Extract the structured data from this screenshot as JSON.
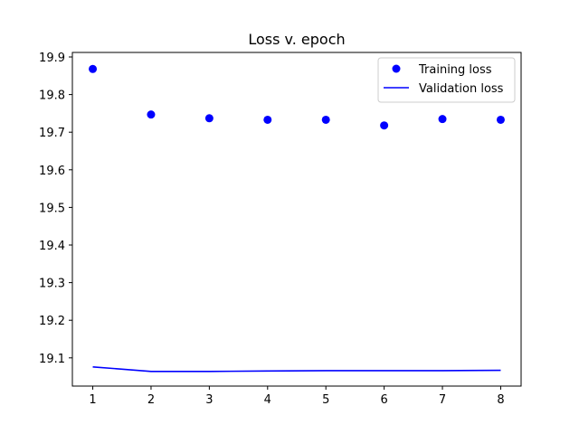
{
  "chart_data": {
    "type": "line",
    "title": "Loss v. epoch",
    "xlabel": "",
    "ylabel": "",
    "x": [
      1,
      2,
      3,
      4,
      5,
      6,
      7,
      8
    ],
    "xlim": [
      0.65,
      8.35
    ],
    "ylim": [
      19.025,
      19.912
    ],
    "xticks": [
      1,
      2,
      3,
      4,
      5,
      6,
      7,
      8
    ],
    "yticks": [
      19.1,
      19.2,
      19.3,
      19.4,
      19.5,
      19.6,
      19.7,
      19.8,
      19.9
    ],
    "grid": false,
    "legend_position": "top-right",
    "series": [
      {
        "name": "Training loss",
        "style": "markers",
        "color": "#0000ff",
        "values": [
          19.868,
          19.747,
          19.737,
          19.733,
          19.733,
          19.718,
          19.735,
          19.733
        ]
      },
      {
        "name": "Validation loss",
        "style": "line",
        "color": "#0000ff",
        "values": [
          19.076,
          19.064,
          19.064,
          19.065,
          19.066,
          19.066,
          19.066,
          19.067
        ]
      }
    ]
  }
}
